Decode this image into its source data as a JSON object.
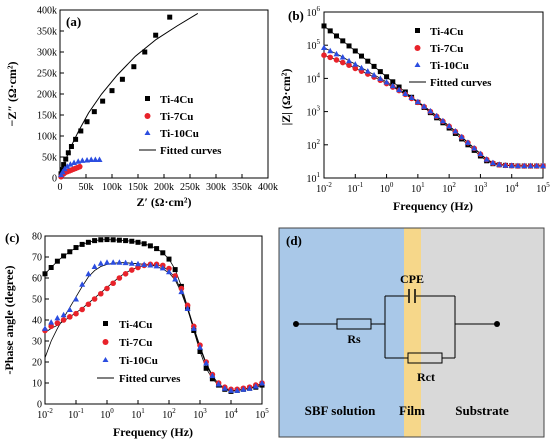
{
  "panels": {
    "a": "(a)",
    "b": "(b)",
    "c": "(c)",
    "d": "(d)"
  },
  "colors": {
    "ti4": "#000000",
    "ti7": "#e8222a",
    "ti10": "#2b4de0",
    "fit": "#000000",
    "sbf": "#a9c8e8",
    "film": "#f6d78a",
    "substrate": "#d9d9d9"
  },
  "chart_data": [
    {
      "type": "scatter",
      "panel": "(a)",
      "xlabel": "Z′ (Ω·cm²)",
      "ylabel": "−Z″ (Ω·cm²)",
      "xlim": [
        0,
        400000
      ],
      "ylim": [
        0,
        400000
      ],
      "xticks": [
        "0",
        "50k",
        "100k",
        "150k",
        "200k",
        "250k",
        "300k",
        "350k",
        "400k"
      ],
      "yticks": [
        "0",
        "50k",
        "100k",
        "150k",
        "200k",
        "250k",
        "300k",
        "350k",
        "400k"
      ],
      "legend": [
        "Ti-4Cu",
        "Ti-7Cu",
        "Ti-10Cu",
        "Fitted curves"
      ],
      "series": [
        {
          "name": "Ti-4Cu",
          "x": [
            2000,
            4000,
            7000,
            11000,
            16000,
            22000,
            30000,
            40000,
            52000,
            66000,
            82000,
            100000,
            120000,
            142000,
            163000,
            184000,
            211000
          ],
          "y": [
            10000,
            20000,
            32000,
            45000,
            60000,
            75000,
            92000,
            112000,
            134000,
            158000,
            183000,
            208000,
            235000,
            265000,
            300000,
            340000,
            383000
          ]
        },
        {
          "name": "Ti-7Cu",
          "x": [
            2000,
            4000,
            7000,
            10000,
            14000,
            18000,
            22000,
            26000,
            30000,
            34000,
            38000
          ],
          "y": [
            3000,
            7000,
            10000,
            13000,
            15000,
            17000,
            19000,
            21000,
            23000,
            25000,
            27000
          ]
        },
        {
          "name": "Ti-10Cu",
          "x": [
            2000,
            5000,
            9000,
            14000,
            20000,
            27000,
            35000,
            43000,
            52000,
            60000,
            68000,
            76000
          ],
          "y": [
            8000,
            15000,
            22000,
            28000,
            33000,
            37000,
            40000,
            42000,
            43000,
            44000,
            44000,
            44000
          ]
        }
      ],
      "fit": [
        {
          "x": [
            0,
            5000,
            10000,
            20000,
            35000,
            55000,
            80000,
            110000,
            145000,
            185000,
            225000,
            265000
          ],
          "y": [
            0,
            22000,
            40000,
            72000,
            110000,
            155000,
            200000,
            245000,
            290000,
            330000,
            362000,
            392000
          ]
        }
      ]
    },
    {
      "type": "scatter",
      "panel": "(b)",
      "xlabel": "Frequency (Hz)",
      "ylabel": "|Z| (Ω·cm²)",
      "xscale": "log",
      "yscale": "log",
      "xlim": [
        0.01,
        100000
      ],
      "ylim": [
        10,
        1000000
      ],
      "xticks": [
        {
          "b": "10",
          "e": "-2"
        },
        {
          "b": "10",
          "e": "-1"
        },
        {
          "b": "10",
          "e": "0"
        },
        {
          "b": "10",
          "e": "1"
        },
        {
          "b": "10",
          "e": "2"
        },
        {
          "b": "10",
          "e": "3"
        },
        {
          "b": "10",
          "e": "4"
        },
        {
          "b": "10",
          "e": "5"
        }
      ],
      "yticks": [
        {
          "b": "10",
          "e": "1"
        },
        {
          "b": "10",
          "e": "2"
        },
        {
          "b": "10",
          "e": "3"
        },
        {
          "b": "10",
          "e": "4"
        },
        {
          "b": "10",
          "e": "5"
        },
        {
          "b": "10",
          "e": "6"
        }
      ],
      "legend": [
        "Ti-4Cu",
        "Ti-7Cu",
        "Ti-10Cu",
        "Fitted curves"
      ],
      "x": [
        0.01,
        0.0158,
        0.0251,
        0.0398,
        0.0631,
        0.1,
        0.158,
        0.251,
        0.398,
        0.631,
        1,
        1.58,
        2.51,
        3.98,
        6.31,
        10,
        15.8,
        25.1,
        39.8,
        63.1,
        100,
        158,
        251,
        398,
        631,
        1000,
        1580,
        2510,
        3980,
        6310,
        10000,
        15800,
        25100,
        39800,
        63100,
        100000
      ],
      "series": [
        {
          "name": "Ti-4Cu",
          "values": [
            380000,
            270000,
            190000,
            135000,
            95000,
            67000,
            47000,
            33000,
            23000,
            16000,
            11200,
            7900,
            5500,
            3900,
            2700,
            1900,
            1330,
            930,
            650,
            460,
            320,
            220,
            150,
            100,
            68,
            46,
            33,
            27,
            25,
            24,
            23.5,
            23,
            23,
            23,
            23,
            23
          ]
        },
        {
          "name": "Ti-7Cu",
          "values": [
            50000,
            43000,
            36000,
            30000,
            25000,
            20000,
            16500,
            13500,
            11000,
            8800,
            7000,
            5500,
            4300,
            3300,
            2500,
            1900,
            1400,
            1000,
            720,
            510,
            360,
            250,
            170,
            115,
            78,
            52,
            36,
            28,
            25,
            24,
            23.5,
            23,
            23,
            23,
            23,
            23
          ]
        },
        {
          "name": "Ti-10Cu",
          "values": [
            85000,
            68000,
            55000,
            44000,
            34000,
            27000,
            21000,
            16500,
            12800,
            10000,
            7800,
            6000,
            4600,
            3500,
            2650,
            2000,
            1450,
            1050,
            750,
            530,
            370,
            260,
            175,
            118,
            80,
            54,
            37,
            29,
            26,
            24.5,
            24,
            23.5,
            23.5,
            23.5,
            23.5,
            23.5
          ]
        }
      ]
    },
    {
      "type": "scatter",
      "panel": "(c)",
      "xlabel": "Frequency (Hz)",
      "ylabel": "-Phase angle (degree)",
      "xscale": "log",
      "xlim": [
        0.01,
        100000
      ],
      "ylim": [
        0,
        80
      ],
      "xticks": [
        {
          "b": "10",
          "e": "-2"
        },
        {
          "b": "10",
          "e": "-1"
        },
        {
          "b": "10",
          "e": "0"
        },
        {
          "b": "10",
          "e": "1"
        },
        {
          "b": "10",
          "e": "2"
        },
        {
          "b": "10",
          "e": "3"
        },
        {
          "b": "10",
          "e": "4"
        },
        {
          "b": "10",
          "e": "5"
        }
      ],
      "yticks": [
        "0",
        "10",
        "20",
        "30",
        "40",
        "50",
        "60",
        "70",
        "80"
      ],
      "legend": [
        "Ti-4Cu",
        "Ti-7Cu",
        "Ti-10Cu",
        "Fitted curves"
      ],
      "x": [
        0.01,
        0.0158,
        0.0251,
        0.0398,
        0.0631,
        0.1,
        0.158,
        0.251,
        0.398,
        0.631,
        1,
        1.58,
        2.51,
        3.98,
        6.31,
        10,
        15.8,
        25.1,
        39.8,
        63.1,
        100,
        158,
        251,
        398,
        631,
        1000,
        1580,
        2510,
        3980,
        6310,
        10000,
        15800,
        25100,
        39800,
        63100,
        100000
      ],
      "series": [
        {
          "name": "Ti-4Cu",
          "values": [
            62,
            65,
            68,
            70.5,
            72.5,
            74.5,
            76,
            77,
            77.8,
            78.2,
            78.3,
            78.2,
            78,
            77.8,
            77.5,
            77,
            76.3,
            75.3,
            74,
            72,
            69,
            64,
            56,
            46,
            35,
            25,
            17,
            12,
            9,
            7,
            6,
            6.5,
            7,
            7.5,
            8,
            9
          ]
        },
        {
          "name": "Ti-7Cu",
          "values": [
            35,
            37,
            38.5,
            40,
            41.5,
            43,
            45,
            47.5,
            50,
            52.5,
            55,
            57.5,
            60,
            62,
            63.8,
            65,
            66,
            66.5,
            66.5,
            66,
            64.5,
            61,
            55,
            47,
            37,
            28,
            20,
            14,
            10,
            8,
            7,
            7,
            7.5,
            8,
            9,
            10
          ]
        },
        {
          "name": "Ti-10Cu",
          "values": [
            36,
            39,
            41,
            42.5,
            45,
            50,
            57,
            62,
            65.5,
            67,
            67.5,
            67.5,
            67.5,
            67.3,
            67,
            66.8,
            66.5,
            66.2,
            65.8,
            64.8,
            63,
            59.5,
            53.5,
            45.5,
            36,
            27,
            19.5,
            13.5,
            9.5,
            7.5,
            6.5,
            6.5,
            7,
            7.5,
            8.5,
            10
          ]
        }
      ],
      "fit": [
        {
          "values": [
            62,
            65,
            68,
            70.5,
            72.5,
            74.5,
            76,
            77,
            77.8,
            78.2,
            78.3,
            78.2,
            78,
            77.8,
            77.5,
            77,
            76.3,
            75.3,
            74,
            72,
            69,
            64,
            56,
            46,
            35,
            25,
            17,
            12,
            9,
            7,
            6,
            6.5,
            7,
            7.5,
            8,
            9
          ]
        },
        {
          "values": [
            34,
            36,
            37.5,
            39.5,
            41.5,
            43.5,
            45.5,
            48,
            50.5,
            53,
            55.5,
            58,
            60.5,
            62.5,
            64,
            65.2,
            66,
            66.3,
            66.2,
            65.5,
            63.5,
            60,
            54,
            46,
            36.5,
            27.5,
            19.5,
            13.5,
            9.5,
            7.5,
            6.5,
            6.5,
            7,
            7.5,
            8.5,
            10
          ]
        },
        {
          "values": [
            22,
            30,
            36,
            41,
            46,
            51,
            56,
            60.5,
            63.5,
            65.5,
            66.5,
            67,
            67.3,
            67.3,
            67,
            66.8,
            66.5,
            66.2,
            65.5,
            64.3,
            62.5,
            59,
            53,
            45,
            35.5,
            26.5,
            19,
            13,
            9.5,
            7.5,
            6.5,
            6.5,
            7,
            7.5,
            8.5,
            9.5
          ]
        }
      ]
    }
  ],
  "circuit": {
    "regions": [
      "SBF solution",
      "Film",
      "Substrate"
    ],
    "components": {
      "rs": "Rs",
      "cpe": "CPE",
      "rct": "Rct"
    }
  }
}
